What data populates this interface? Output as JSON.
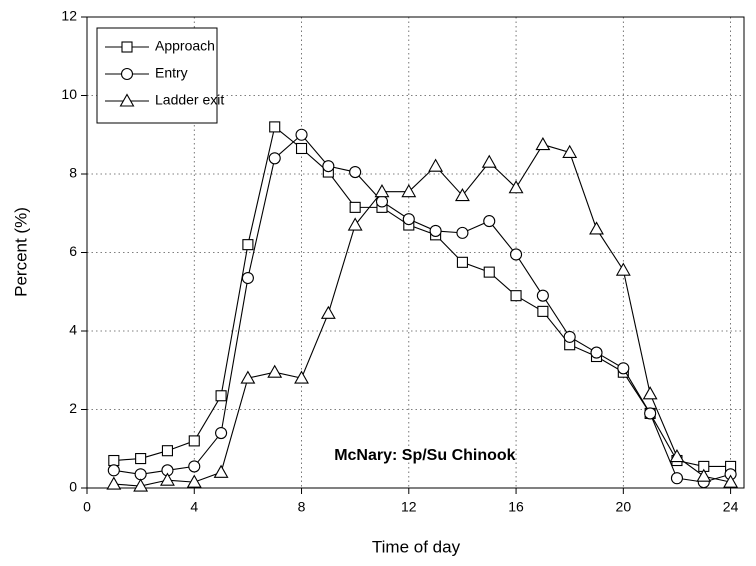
{
  "chart_data": {
    "type": "line",
    "xlabel": "Time of day",
    "ylabel": "Percent (%)",
    "annotation": "McNary: Sp/Su Chinook",
    "x": [
      1,
      2,
      3,
      4,
      5,
      6,
      7,
      8,
      9,
      10,
      11,
      12,
      13,
      14,
      15,
      16,
      17,
      18,
      19,
      20,
      21,
      22,
      23,
      24
    ],
    "series": [
      {
        "name": "Approach",
        "color": "#000000",
        "marker": "square",
        "values": [
          0.7,
          0.75,
          0.95,
          1.2,
          2.35,
          6.2,
          9.2,
          8.65,
          8.05,
          7.15,
          7.15,
          6.7,
          6.45,
          5.75,
          5.5,
          4.9,
          4.5,
          3.65,
          3.35,
          2.95,
          1.9,
          0.7,
          0.55,
          0.55
        ]
      },
      {
        "name": "Entry",
        "color": "#000000",
        "marker": "circle",
        "values": [
          0.45,
          0.35,
          0.45,
          0.55,
          1.4,
          5.35,
          8.4,
          9.0,
          8.2,
          8.05,
          7.3,
          6.85,
          6.55,
          6.5,
          6.8,
          5.95,
          4.9,
          3.85,
          3.45,
          3.05,
          1.9,
          0.25,
          0.15,
          0.35
        ]
      },
      {
        "name": "Ladder exit",
        "color": "#000000",
        "marker": "triangle",
        "values": [
          0.1,
          0.05,
          0.2,
          0.15,
          0.4,
          2.8,
          2.95,
          2.8,
          4.45,
          6.7,
          7.55,
          7.55,
          8.2,
          7.45,
          8.3,
          7.65,
          8.75,
          8.55,
          6.6,
          5.55,
          2.4,
          0.8,
          0.3,
          0.15
        ]
      }
    ],
    "xlim": [
      0,
      24.5
    ],
    "xticks": [
      0,
      4,
      8,
      12,
      16,
      20,
      24
    ],
    "ylim": [
      0,
      12
    ],
    "yticks": [
      0,
      2,
      4,
      6,
      8,
      10,
      12
    ],
    "grid": true,
    "legend": "upper left"
  }
}
